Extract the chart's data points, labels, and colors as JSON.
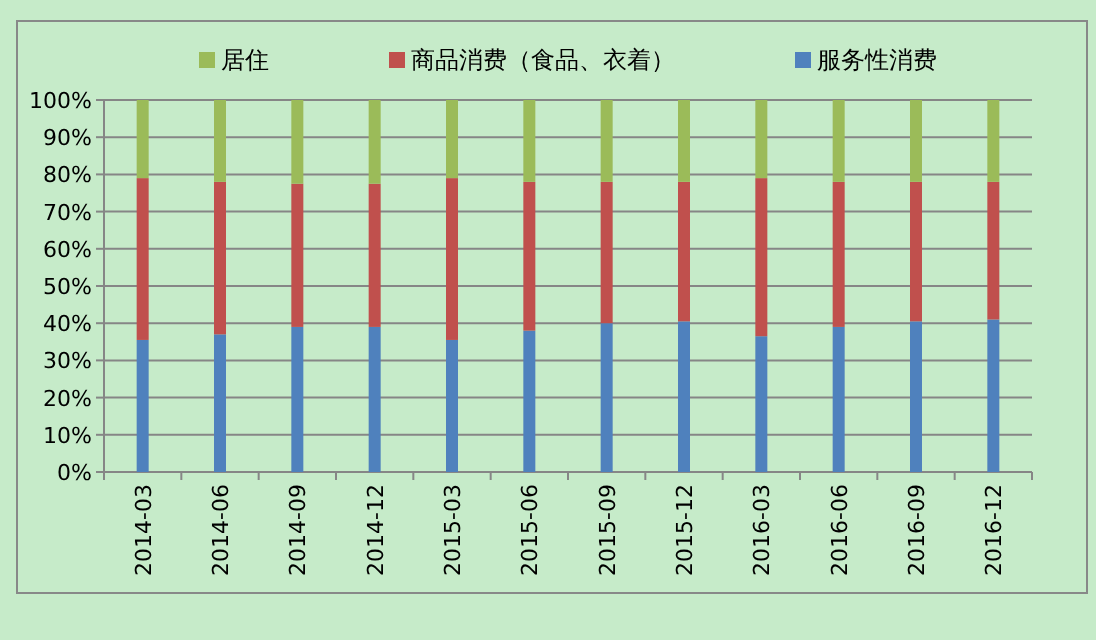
{
  "chart_data": {
    "type": "bar",
    "stacked": true,
    "categories": [
      "2014-03",
      "2014-06",
      "2014-09",
      "2014-12",
      "2015-03",
      "2015-06",
      "2015-09",
      "2015-12",
      "2016-03",
      "2016-06",
      "2016-09",
      "2016-12"
    ],
    "series": [
      {
        "name": "服务性消费",
        "color": "#4f81bd",
        "values": [
          35.5,
          37,
          39,
          39,
          35.5,
          38,
          40,
          40.5,
          36.5,
          39,
          40.5,
          41
        ]
      },
      {
        "name": "商品消费（食品、衣着）",
        "color": "#c0504d",
        "values": [
          43.5,
          41,
          38.5,
          38.5,
          43.5,
          40,
          38,
          37.5,
          42.5,
          39,
          37.5,
          37
        ]
      },
      {
        "name": "居住",
        "color": "#9bbb59",
        "values": [
          21,
          22,
          22.5,
          22.5,
          21,
          22,
          22,
          22,
          21,
          22,
          22,
          22
        ]
      }
    ],
    "ylim": [
      0,
      100
    ],
    "yticks": [
      {
        "value": 0,
        "label": "0%"
      },
      {
        "value": 10,
        "label": "10%"
      },
      {
        "value": 20,
        "label": "20%"
      },
      {
        "value": 30,
        "label": "30%"
      },
      {
        "value": 40,
        "label": "40%"
      },
      {
        "value": 50,
        "label": "50%"
      },
      {
        "value": 60,
        "label": "60%"
      },
      {
        "value": 70,
        "label": "70%"
      },
      {
        "value": 80,
        "label": "80%"
      },
      {
        "value": 90,
        "label": "90%"
      },
      {
        "value": 100,
        "label": "100%"
      }
    ],
    "grid": "y",
    "legend": "top"
  }
}
